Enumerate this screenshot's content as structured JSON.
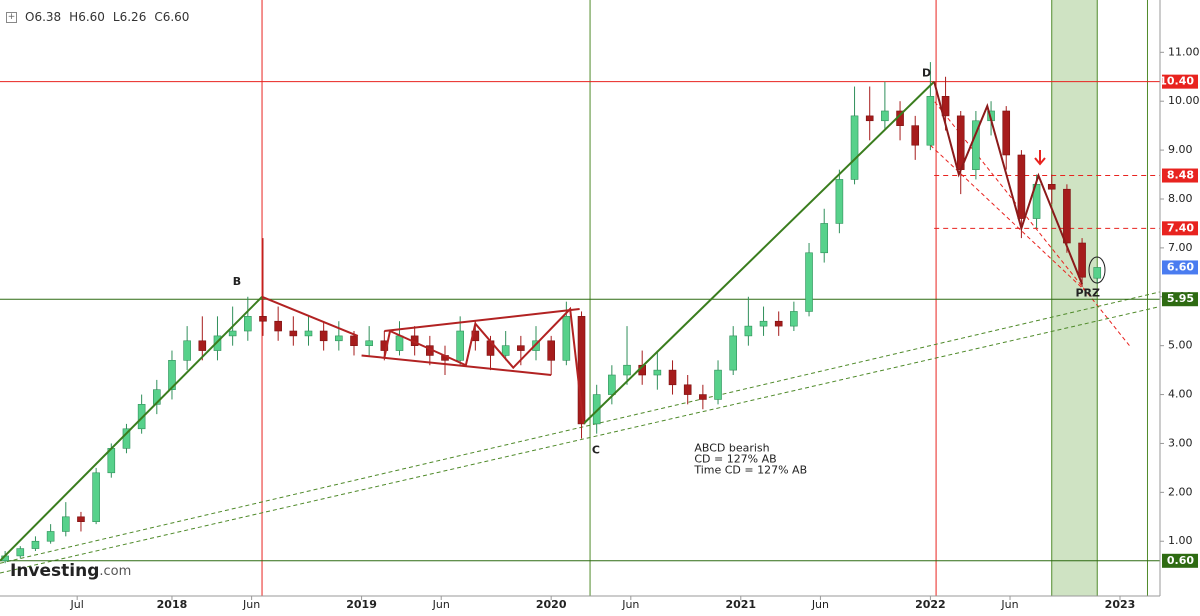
{
  "chart_data": {
    "type": "candlestick",
    "ohlc_header": [
      "O6.38",
      "H6.60",
      "L6.26",
      "C6.60"
    ],
    "logo": {
      "main": "Investing",
      "suffix": ".com"
    },
    "up_color": "#57d18b",
    "down_color": "#a61c1c",
    "xlim": [
      2017.093,
      2023.211
    ],
    "ylim": [
      -0.12,
      12.07
    ],
    "xticks": [
      {
        "value": 2017.5,
        "label": "Jul"
      },
      {
        "value": 2018,
        "label": "2018"
      },
      {
        "value": 2018.42,
        "label": "Jun"
      },
      {
        "value": 2019,
        "label": "2019"
      },
      {
        "value": 2019.42,
        "label": "Jun"
      },
      {
        "value": 2020,
        "label": "2020"
      },
      {
        "value": 2020.42,
        "label": "Jun"
      },
      {
        "value": 2021,
        "label": "2021"
      },
      {
        "value": 2021.42,
        "label": "Jun"
      },
      {
        "value": 2022,
        "label": "2022"
      },
      {
        "value": 2022.42,
        "label": "Jun"
      },
      {
        "value": 2023,
        "label": "2023"
      }
    ],
    "yticks": [
      {
        "value": 1,
        "label": "1.00"
      },
      {
        "value": 2,
        "label": "2.00"
      },
      {
        "value": 3,
        "label": "3.00"
      },
      {
        "value": 4,
        "label": "4.00"
      },
      {
        "value": 5,
        "label": "5.00"
      },
      {
        "value": 6,
        "label": "6.00"
      },
      {
        "value": 7,
        "label": "7.00"
      },
      {
        "value": 8,
        "label": "8.00"
      },
      {
        "value": 9,
        "label": "9.00"
      },
      {
        "value": 10,
        "label": "10.00"
      },
      {
        "value": 11,
        "label": "11.00"
      }
    ],
    "candles": [
      [
        2017.12,
        0.6,
        0.8,
        0.55,
        0.7
      ],
      [
        2017.2,
        0.7,
        0.9,
        0.65,
        0.85
      ],
      [
        2017.28,
        0.85,
        1.1,
        0.8,
        1.0
      ],
      [
        2017.36,
        1.0,
        1.35,
        0.95,
        1.2
      ],
      [
        2017.44,
        1.2,
        1.8,
        1.1,
        1.5
      ],
      [
        2017.52,
        1.5,
        1.6,
        1.2,
        1.4
      ],
      [
        2017.6,
        1.4,
        2.5,
        1.35,
        2.4
      ],
      [
        2017.68,
        2.4,
        3.0,
        2.3,
        2.9
      ],
      [
        2017.76,
        2.9,
        3.4,
        2.8,
        3.3
      ],
      [
        2017.84,
        3.3,
        4.0,
        3.2,
        3.8
      ],
      [
        2017.92,
        3.8,
        4.3,
        3.6,
        4.1
      ],
      [
        2018.0,
        4.1,
        4.9,
        3.9,
        4.7
      ],
      [
        2018.08,
        4.7,
        5.4,
        4.5,
        5.1
      ],
      [
        2018.16,
        5.1,
        5.6,
        4.7,
        4.9
      ],
      [
        2018.24,
        4.9,
        5.6,
        4.7,
        5.2
      ],
      [
        2018.32,
        5.2,
        5.8,
        5.0,
        5.3
      ],
      [
        2018.4,
        5.3,
        6.0,
        5.1,
        5.6
      ],
      [
        2018.48,
        5.6,
        7.2,
        5.2,
        5.5
      ],
      [
        2018.56,
        5.5,
        5.8,
        5.1,
        5.3
      ],
      [
        2018.64,
        5.3,
        5.6,
        5.0,
        5.2
      ],
      [
        2018.72,
        5.2,
        5.6,
        5.0,
        5.3
      ],
      [
        2018.8,
        5.3,
        5.5,
        4.9,
        5.1
      ],
      [
        2018.88,
        5.1,
        5.5,
        4.9,
        5.2
      ],
      [
        2018.96,
        5.2,
        5.3,
        4.8,
        5.0
      ],
      [
        2019.04,
        5.0,
        5.4,
        4.8,
        5.1
      ],
      [
        2019.12,
        5.1,
        5.3,
        4.7,
        4.9
      ],
      [
        2019.2,
        4.9,
        5.5,
        4.8,
        5.2
      ],
      [
        2019.28,
        5.2,
        5.4,
        4.8,
        5.0
      ],
      [
        2019.36,
        5.0,
        5.2,
        4.6,
        4.8
      ],
      [
        2019.44,
        4.8,
        5.0,
        4.4,
        4.7
      ],
      [
        2019.52,
        4.7,
        5.6,
        4.6,
        5.3
      ],
      [
        2019.6,
        5.3,
        5.5,
        4.9,
        5.1
      ],
      [
        2019.68,
        5.1,
        5.2,
        4.5,
        4.8
      ],
      [
        2019.76,
        4.8,
        5.3,
        4.7,
        5.0
      ],
      [
        2019.84,
        5.0,
        5.2,
        4.6,
        4.9
      ],
      [
        2019.92,
        4.9,
        5.4,
        4.7,
        5.1
      ],
      [
        2020.0,
        5.1,
        5.2,
        4.4,
        4.7
      ],
      [
        2020.08,
        4.7,
        5.9,
        4.6,
        5.6
      ],
      [
        2020.16,
        5.6,
        5.7,
        3.1,
        3.4
      ],
      [
        2020.24,
        3.4,
        4.2,
        3.2,
        4.0
      ],
      [
        2020.32,
        4.0,
        4.6,
        3.8,
        4.4
      ],
      [
        2020.4,
        4.4,
        5.4,
        4.2,
        4.6
      ],
      [
        2020.48,
        4.6,
        4.9,
        4.2,
        4.4
      ],
      [
        2020.56,
        4.4,
        4.9,
        4.1,
        4.5
      ],
      [
        2020.64,
        4.5,
        4.7,
        4.0,
        4.2
      ],
      [
        2020.72,
        4.2,
        4.4,
        3.8,
        4.0
      ],
      [
        2020.8,
        4.0,
        4.2,
        3.7,
        3.9
      ],
      [
        2020.88,
        3.9,
        4.7,
        3.8,
        4.5
      ],
      [
        2020.96,
        4.5,
        5.4,
        4.4,
        5.2
      ],
      [
        2021.04,
        5.2,
        6.0,
        5.0,
        5.4
      ],
      [
        2021.12,
        5.4,
        5.8,
        5.2,
        5.5
      ],
      [
        2021.2,
        5.5,
        5.7,
        5.2,
        5.4
      ],
      [
        2021.28,
        5.4,
        5.9,
        5.3,
        5.7
      ],
      [
        2021.36,
        5.7,
        7.1,
        5.6,
        6.9
      ],
      [
        2021.44,
        6.9,
        7.8,
        6.7,
        7.5
      ],
      [
        2021.52,
        7.5,
        8.6,
        7.3,
        8.4
      ],
      [
        2021.6,
        8.4,
        10.3,
        8.3,
        9.7
      ],
      [
        2021.68,
        9.7,
        10.3,
        9.2,
        9.6
      ],
      [
        2021.76,
        9.6,
        10.4,
        9.4,
        9.8
      ],
      [
        2021.84,
        9.8,
        10.0,
        9.2,
        9.5
      ],
      [
        2021.92,
        9.5,
        9.7,
        8.8,
        9.1
      ],
      [
        2022.0,
        9.1,
        10.8,
        9.0,
        10.1
      ],
      [
        2022.08,
        10.1,
        10.5,
        9.4,
        9.7
      ],
      [
        2022.16,
        9.7,
        9.8,
        8.1,
        8.6
      ],
      [
        2022.24,
        8.6,
        9.8,
        8.4,
        9.6
      ],
      [
        2022.32,
        9.6,
        10.0,
        9.3,
        9.8
      ],
      [
        2022.4,
        9.8,
        9.9,
        8.6,
        8.9
      ],
      [
        2022.48,
        8.9,
        9.0,
        7.2,
        7.6
      ],
      [
        2022.56,
        7.6,
        8.5,
        7.4,
        8.3
      ],
      [
        2022.64,
        8.3,
        8.5,
        7.9,
        8.2
      ],
      [
        2022.72,
        8.2,
        8.3,
        6.9,
        7.1
      ],
      [
        2022.8,
        7.1,
        7.2,
        6.2,
        6.4
      ],
      [
        2022.88,
        6.38,
        6.6,
        6.26,
        6.6
      ]
    ],
    "levels": [
      {
        "value": 10.4,
        "label": "10.40",
        "color": "#e8231f",
        "style": "solid",
        "start": 2017.093
      },
      {
        "value": 8.48,
        "label": "8.48",
        "color": "#e8231f",
        "style": "dashed",
        "start": 2022.02
      },
      {
        "value": 7.4,
        "label": "7.40",
        "color": "#e8231f",
        "style": "dashed",
        "start": 2022.02
      },
      {
        "value": 6.6,
        "label": "6.60",
        "color": "#4a7cf0",
        "style": "none",
        "start": 2023.211
      },
      {
        "value": 5.95,
        "label": "5.95",
        "color": "#2e6b12",
        "style": "solid",
        "start": 2017.093
      },
      {
        "value": 0.6,
        "label": "0.60",
        "color": "#2e6b12",
        "style": "solid",
        "start": 2017.093
      }
    ],
    "verticals": [
      {
        "x": 2018.475,
        "color": "#e8231f"
      },
      {
        "x": 2020.205,
        "color": "#4f8a2a"
      },
      {
        "x": 2022.03,
        "color": "#e8231f"
      },
      {
        "x": 2023.145,
        "color": "#4f8a2a"
      }
    ],
    "band": {
      "x": [
        2022.64,
        2022.88
      ],
      "color": "#cfe3c3"
    },
    "drawings": [
      {
        "color": "#3a7d1e",
        "dash": false,
        "points": [
          [
            2017.093,
            0.6
          ],
          [
            2018.475,
            6.0
          ]
        ]
      },
      {
        "color": "#3a7d1e",
        "dash": false,
        "points": [
          [
            2020.17,
            3.4
          ],
          [
            2022.02,
            10.4
          ]
        ]
      },
      {
        "color": "#b22222",
        "dash": false,
        "points": [
          [
            2018.475,
            6.0
          ],
          [
            2018.98,
            5.2
          ]
        ]
      },
      {
        "color": "#b22222",
        "dash": false,
        "points": [
          [
            2019.12,
            5.3
          ],
          [
            2020.15,
            5.75
          ]
        ]
      },
      {
        "color": "#b22222",
        "dash": false,
        "points": [
          [
            2019.0,
            4.8
          ],
          [
            2020.0,
            4.4
          ]
        ]
      },
      {
        "color": "#b22222",
        "dash": false,
        "points": [
          [
            2019.12,
            4.75
          ],
          [
            2019.15,
            5.3
          ],
          [
            2019.55,
            4.6
          ],
          [
            2019.6,
            5.45
          ],
          [
            2019.8,
            4.55
          ],
          [
            2020.1,
            5.75
          ],
          [
            2020.17,
            3.4
          ]
        ]
      },
      {
        "color": "#8b1a1a",
        "dash": false,
        "points": [
          [
            2022.02,
            10.4
          ],
          [
            2022.15,
            8.5
          ],
          [
            2022.3,
            9.9
          ],
          [
            2022.48,
            7.4
          ],
          [
            2022.57,
            8.48
          ],
          [
            2022.8,
            6.26
          ]
        ]
      },
      {
        "color": "#e8231f",
        "dash": true,
        "points": [
          [
            2022.0,
            10.1
          ],
          [
            2023.05,
            5.0
          ]
        ]
      },
      {
        "color": "#e8231f",
        "dash": true,
        "points": [
          [
            2022.0,
            9.1
          ],
          [
            2022.85,
            6.0
          ]
        ]
      },
      {
        "color": "#4f8a2a",
        "dash": true,
        "points": [
          [
            2017.093,
            0.55
          ],
          [
            2023.211,
            6.1
          ]
        ]
      },
      {
        "color": "#4f8a2a",
        "dash": true,
        "points": [
          [
            2017.093,
            0.35
          ],
          [
            2023.211,
            5.8
          ]
        ]
      }
    ],
    "annotations": [
      {
        "text": "B",
        "x": 2018.343,
        "y": 6.3
      },
      {
        "text": "C",
        "x": 2020.236,
        "y": 2.86
      },
      {
        "text": "D",
        "x": 2021.98,
        "y": 10.57
      },
      {
        "text": "PRZ",
        "x": 2022.83,
        "y": 6.07
      }
    ],
    "note": {
      "lines": [
        "ABCD bearish",
        "CD = 127% AB",
        "Time CD = 127% AB"
      ],
      "x": 2020.755,
      "y": 2.9
    }
  }
}
